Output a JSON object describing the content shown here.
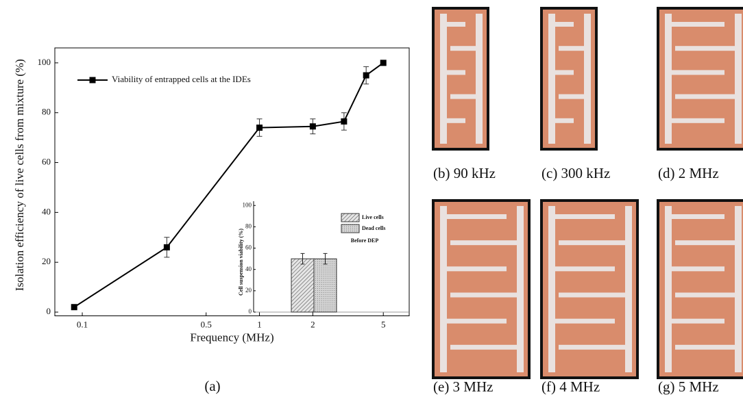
{
  "chart_data": [
    {
      "type": "line",
      "xlabel": "Frequency (MHz)",
      "ylabel": "Isolation efficiency of live cells  from mixture (%)",
      "log_x": true,
      "xlim": [
        0.07,
        7
      ],
      "xticks": [
        0.1,
        0.5,
        1,
        2,
        5
      ],
      "ylim": [
        -1.5,
        106
      ],
      "yticks": [
        0,
        20,
        40,
        60,
        80,
        100
      ],
      "legend": "upper left",
      "series": [
        {
          "name": "Viability of entrapped cells at the IDEs",
          "color": "#000000",
          "x": [
            0.09,
            0.3,
            1,
            2,
            3,
            4,
            5
          ],
          "values": [
            2,
            26,
            74,
            74.5,
            76.5,
            95,
            100
          ],
          "errors": [
            0,
            4,
            3.5,
            3,
            3.5,
            3.5,
            0
          ]
        }
      ]
    },
    {
      "type": "bar",
      "ylabel": "Cell suspension viability (%)",
      "annotation": "Before DEP",
      "ylim": [
        0,
        104
      ],
      "yticks": [
        0,
        20,
        40,
        60,
        80,
        100
      ],
      "legend": "upper right",
      "series": [
        {
          "name": "Live cells",
          "color": "#cccccc",
          "values": [
            50
          ],
          "errors": [
            5
          ]
        },
        {
          "name": "Dead cells",
          "color": "#bdbdbd",
          "values": [
            50
          ],
          "errors": [
            5
          ]
        }
      ]
    }
  ],
  "caption": "(a)",
  "panels": [
    {
      "caption": "(b) 90 kHz"
    },
    {
      "caption": "(c) 300 kHz"
    },
    {
      "caption": "(d) 2 MHz"
    },
    {
      "caption": "(e) 3 MHz"
    },
    {
      "caption": "(f) 4 MHz"
    },
    {
      "caption": "(g) 5 MHz"
    }
  ]
}
